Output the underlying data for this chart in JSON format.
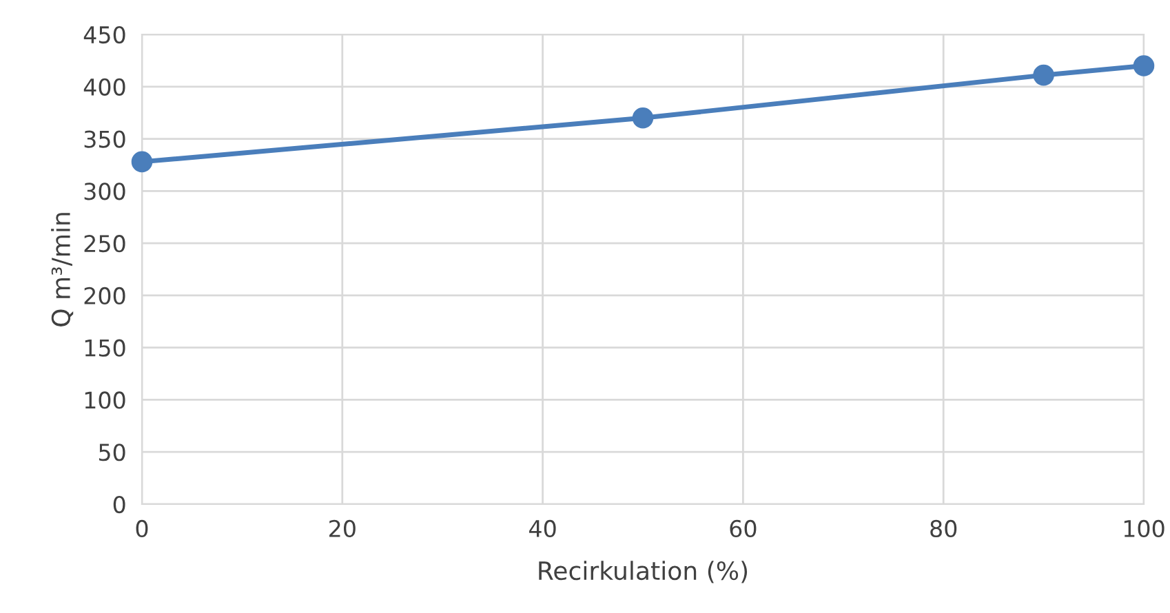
{
  "chart_data": {
    "type": "line",
    "xlabel": "Recirkulation (%)",
    "ylabel": "Q m³/min",
    "x": [
      0,
      50,
      90,
      100
    ],
    "series": [
      {
        "color": "#4a7ebb",
        "values": [
          328,
          370,
          411,
          420
        ]
      }
    ],
    "xlim": [
      0,
      100
    ],
    "xticks": [
      0,
      20,
      40,
      60,
      80,
      100
    ],
    "ylim": [
      0,
      450
    ],
    "yticks": [
      0,
      50,
      100,
      150,
      200,
      250,
      300,
      350,
      400,
      450
    ],
    "grid": true,
    "marker": "circle",
    "line_style": "solid",
    "legend": false
  }
}
